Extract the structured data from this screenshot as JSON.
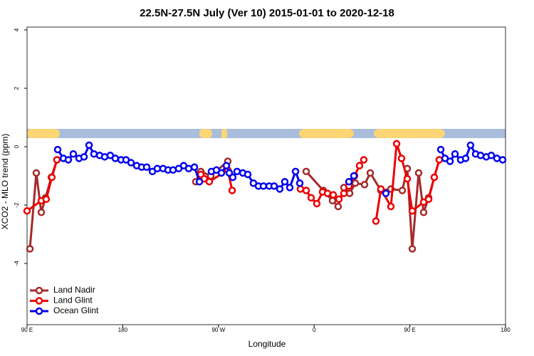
{
  "chart_data": {
    "type": "line",
    "title": "22.5N-27.5N July (Ver 10)   2015-01-01 to 2020-12-18",
    "x_label": "Longitude",
    "y_label": "XCO2 - MLO trend (ppm)",
    "xlim": [
      90,
      540
    ],
    "xticks": [
      {
        "value": 90,
        "label": "90 E"
      },
      180,
      {
        "value": 270,
        "label": "90 W"
      },
      {
        "value": 360,
        "label": "0"
      },
      {
        "value": 450,
        "label": "90 E"
      },
      {
        "value": 540,
        "label": "180"
      }
    ],
    "ylim": [
      -6,
      4
    ],
    "yticks": [
      -4,
      -2,
      0,
      2,
      4
    ],
    "legend": "bottom-left",
    "series": [
      {
        "name": "Land Nadir",
        "color": "#a52a2a",
        "x": [
          92.7,
          98.7,
          103.4,
          107.4,
          112.8,
          118.1,
          null,
          248.7,
          253.4,
          262.8,
          278.8,
          null,
          352.5,
          368.6,
          377.3,
          382.6,
          388.0,
          393.4,
          398.7,
          407.4,
          412.8,
          422.8,
          432.2,
          442.9,
          447.6,
          452.3,
          458.3,
          463.0,
          467.7,
          473.0,
          477.7
        ],
        "values": [
          -3.5,
          -0.9,
          -2.25,
          -1.75,
          -1.05,
          -0.45,
          null,
          -1.2,
          -0.85,
          -1.0,
          -0.5,
          null,
          -0.85,
          -1.5,
          -1.85,
          -2.05,
          -1.4,
          -1.6,
          -1.25,
          -1.3,
          -0.9,
          -1.5,
          -1.45,
          -1.5,
          -0.75,
          -3.5,
          -0.9,
          -2.25,
          -1.75,
          -1.05,
          -0.45
        ]
      },
      {
        "name": "Land Glint",
        "color": "#ee0000",
        "x": [
          90.0,
          103.4,
          108.0,
          113.4,
          118.1,
          null,
          253.4,
          256.7,
          261.4,
          278.8,
          282.9,
          null,
          347.1,
          352.5,
          357.2,
          362.5,
          367.9,
          372.6,
          378.0,
          383.3,
          388.0,
          392.7,
          398.0,
          402.7,
          406.7,
          null,
          418.1,
          422.8,
          432.2,
          437.6,
          442.2,
          447.6,
          452.3,
          463.0,
          467.7,
          473.0,
          477.7
        ],
        "values": [
          -2.2,
          -1.85,
          -1.8,
          -1.05,
          -0.45,
          null,
          -0.95,
          -1.1,
          -1.2,
          -0.8,
          -1.5,
          null,
          -1.45,
          -1.5,
          -1.75,
          -1.95,
          -1.55,
          -1.6,
          -1.65,
          -1.8,
          -1.6,
          -1.35,
          -1.0,
          -0.65,
          -0.45,
          null,
          -2.55,
          -1.45,
          -2.05,
          0.1,
          -0.4,
          -1.1,
          -2.2,
          -1.9,
          -1.8,
          -1.05,
          -0.45
        ]
      },
      {
        "name": "Ocean Glint",
        "color": "#0000ee",
        "x": [
          118.8,
          124.2,
          128.8,
          133.5,
          138.9,
          143.6,
          148.3,
          152.9,
          158.3,
          163.0,
          168.3,
          173.0,
          178.4,
          183.1,
          187.8,
          193.1,
          197.8,
          202.5,
          207.9,
          212.5,
          217.9,
          222.6,
          227.3,
          232.6,
          237.3,
          242.0,
          247.4,
          252.1,
          null,
          263.4,
          268.1,
          272.8,
          277.5,
          280.2,
          283.5,
          287.5,
          292.9,
          297.6,
          302.9,
          307.6,
          312.3,
          317.7,
          322.4,
          327.7,
          332.4,
          337.1,
          342.5,
          346.5,
          null,
          392.7,
          397.4,
          null,
          427.5,
          null,
          479.1,
          483.1,
          487.8,
          492.5,
          497.8,
          502.5,
          507.1,
          511.9,
          516.6,
          521.9,
          526.6,
          531.9,
          537.3
        ],
        "values": [
          -0.1,
          -0.4,
          -0.45,
          -0.25,
          -0.4,
          -0.35,
          0.05,
          -0.25,
          -0.3,
          -0.35,
          -0.3,
          -0.4,
          -0.45,
          -0.45,
          -0.55,
          -0.65,
          -0.7,
          -0.7,
          -0.85,
          -0.75,
          -0.75,
          -0.8,
          -0.8,
          -0.75,
          -0.65,
          -0.75,
          -0.7,
          -1.2,
          null,
          -0.85,
          -0.8,
          -0.9,
          -0.65,
          -0.9,
          -1.05,
          -0.85,
          -0.9,
          -0.95,
          -1.25,
          -1.35,
          -1.35,
          -1.35,
          -1.35,
          -1.45,
          -1.2,
          -1.4,
          -0.85,
          -1.25,
          null,
          -1.2,
          -1.0,
          null,
          -1.6,
          null,
          -0.1,
          -0.4,
          -0.5,
          -0.25,
          -0.45,
          -0.4,
          0.05,
          -0.25,
          -0.3,
          -0.35,
          -0.3,
          -0.4,
          -0.45
        ]
      }
    ]
  }
}
